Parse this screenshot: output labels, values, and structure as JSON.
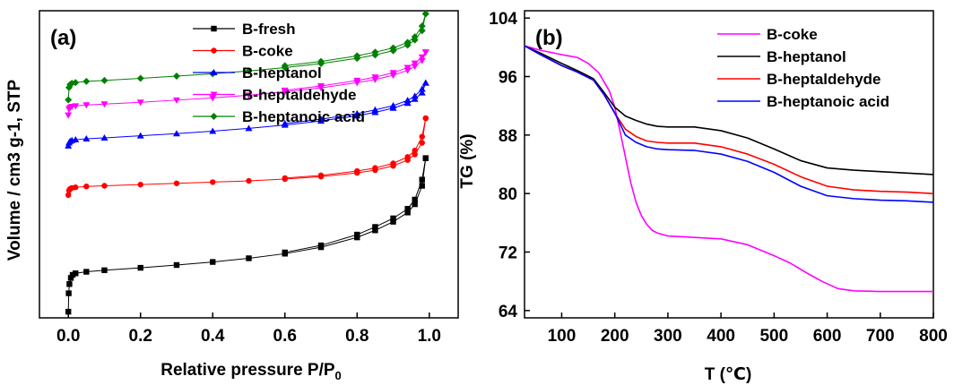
{
  "chart_data": [
    {
      "type": "line",
      "panel_label": "(a)",
      "xlabel": "Relative pressure P/P",
      "xlabel_sub": "0",
      "ylabel": "Volume / cm3 g-1, STP",
      "xlim": [
        -0.08,
        1.08
      ],
      "ylim": [
        0,
        100
      ],
      "x_ticks": [
        0.0,
        0.2,
        0.4,
        0.6,
        0.8,
        1.0
      ],
      "x_tick_labels": [
        "0.0",
        "0.2",
        "0.4",
        "0.6",
        "0.8",
        "1.0"
      ],
      "y_ticks_shown": false,
      "grid": false,
      "legend_position": "top-center",
      "series": [
        {
          "name": "B-fresh",
          "color": "#000000",
          "marker": "square",
          "x": [
            0.0,
            0.001,
            0.003,
            0.007,
            0.012,
            0.02,
            0.05,
            0.1,
            0.2,
            0.3,
            0.4,
            0.5,
            0.6,
            0.7,
            0.8,
            0.85,
            0.9,
            0.94,
            0.96,
            0.98,
            0.99
          ],
          "adsorption": [
            2,
            8,
            11,
            13,
            14,
            14.5,
            15,
            15.5,
            16.3,
            17.2,
            18.2,
            19.4,
            20.9,
            23,
            26.2,
            28.5,
            31.3,
            34.3,
            37,
            43,
            52
          ],
          "desorption": [
            null,
            null,
            null,
            null,
            null,
            null,
            null,
            null,
            null,
            null,
            null,
            null,
            21.3,
            23.6,
            27.1,
            29.6,
            32.4,
            35.5,
            38.5,
            45,
            52
          ]
        },
        {
          "name": "B-coke",
          "color": "#ff0000",
          "marker": "circle",
          "x": [
            0.0,
            0.002,
            0.005,
            0.01,
            0.02,
            0.05,
            0.1,
            0.2,
            0.3,
            0.4,
            0.5,
            0.6,
            0.7,
            0.8,
            0.85,
            0.9,
            0.94,
            0.96,
            0.98,
            0.99
          ],
          "adsorption": [
            40,
            41.5,
            42,
            42.3,
            42.5,
            42.8,
            43,
            43.4,
            43.8,
            44.2,
            44.6,
            45.2,
            46,
            47.2,
            48.1,
            49.5,
            51.4,
            53.2,
            57,
            65
          ],
          "desorption": [
            null,
            null,
            null,
            null,
            null,
            null,
            null,
            null,
            null,
            null,
            null,
            45.5,
            46.4,
            47.8,
            48.8,
            50.3,
            52.4,
            54.5,
            59,
            65
          ]
        },
        {
          "name": "B-heptanol",
          "color": "#0000ff",
          "marker": "triangle-up",
          "x": [
            0.0,
            0.002,
            0.005,
            0.01,
            0.02,
            0.05,
            0.1,
            0.2,
            0.3,
            0.4,
            0.5,
            0.6,
            0.7,
            0.8,
            0.85,
            0.9,
            0.94,
            0.96,
            0.98,
            0.99
          ],
          "adsorption": [
            56,
            57,
            57.5,
            57.8,
            58,
            58.3,
            58.6,
            59.3,
            60,
            60.8,
            61.7,
            62.8,
            64.1,
            65.8,
            66.9,
            68.3,
            69.9,
            71.2,
            73.3,
            76.5
          ],
          "desorption": [
            null,
            null,
            null,
            null,
            null,
            null,
            null,
            null,
            null,
            null,
            null,
            63.3,
            64.7,
            66.5,
            67.7,
            69.1,
            70.8,
            72.2,
            74.5,
            76.5
          ]
        },
        {
          "name": "B-heptaldehyde",
          "color": "#ff00ff",
          "marker": "triangle-down",
          "x": [
            0.0,
            0.002,
            0.005,
            0.01,
            0.02,
            0.05,
            0.1,
            0.2,
            0.3,
            0.4,
            0.5,
            0.6,
            0.7,
            0.8,
            0.85,
            0.9,
            0.94,
            0.96,
            0.98,
            0.99
          ],
          "adsorption": [
            66,
            68,
            68.5,
            68.8,
            69,
            69.3,
            69.6,
            70.2,
            70.9,
            71.6,
            72.5,
            73.6,
            74.9,
            76.6,
            77.6,
            79,
            80.6,
            81.9,
            83.8,
            86.5
          ],
          "desorption": [
            null,
            null,
            null,
            null,
            null,
            null,
            null,
            null,
            null,
            null,
            null,
            74.1,
            75.5,
            77.3,
            78.4,
            79.8,
            81.5,
            82.9,
            84.9,
            86.5
          ]
        },
        {
          "name": "B-heptanoic acid",
          "color": "#008000",
          "marker": "diamond",
          "x": [
            0.0,
            0.002,
            0.005,
            0.01,
            0.02,
            0.05,
            0.1,
            0.2,
            0.3,
            0.4,
            0.5,
            0.6,
            0.7,
            0.8,
            0.85,
            0.9,
            0.94,
            0.96,
            0.98,
            0.99
          ],
          "adsorption": [
            71,
            75,
            76,
            76.4,
            76.6,
            77,
            77.3,
            78,
            78.7,
            79.5,
            80.4,
            81.5,
            82.8,
            84.5,
            85.6,
            87,
            88.8,
            90.5,
            93.5,
            99
          ],
          "desorption": [
            null,
            null,
            null,
            null,
            null,
            null,
            null,
            null,
            null,
            null,
            null,
            82.1,
            83.5,
            85.3,
            86.5,
            87.9,
            89.7,
            91.5,
            95,
            99
          ]
        }
      ]
    },
    {
      "type": "line",
      "panel_label": "(b)",
      "xlabel": "T (℃)",
      "ylabel": "TG (%)",
      "xlim": [
        30,
        800
      ],
      "ylim": [
        63,
        105
      ],
      "x_ticks": [
        100,
        200,
        300,
        400,
        500,
        600,
        700,
        800
      ],
      "x_tick_labels": [
        "100",
        "200",
        "300",
        "400",
        "500",
        "600",
        "700",
        "800"
      ],
      "y_ticks": [
        64,
        72,
        80,
        88,
        96,
        104
      ],
      "y_tick_labels": [
        "64",
        "72",
        "80",
        "88",
        "96",
        "104"
      ],
      "grid": false,
      "legend_position": "top-right",
      "series": [
        {
          "name": "B-coke",
          "color": "#ff00ff",
          "x": [
            30,
            60,
            100,
            130,
            150,
            170,
            190,
            200,
            210,
            220,
            230,
            240,
            250,
            260,
            270,
            280,
            300,
            350,
            400,
            450,
            500,
            530,
            560,
            590,
            620,
            650,
            700,
            750,
            800
          ],
          "y": [
            100.2,
            99.6,
            99,
            98.6,
            97.8,
            96.5,
            94,
            91.8,
            88.5,
            85,
            81.5,
            78.8,
            77,
            75.8,
            75,
            74.6,
            74.2,
            74,
            73.8,
            73,
            71.5,
            70.5,
            69.2,
            68,
            67,
            66.7,
            66.6,
            66.6,
            66.6
          ]
        },
        {
          "name": "B-heptanol",
          "color": "#000000",
          "x": [
            30,
            60,
            100,
            130,
            160,
            180,
            200,
            220,
            240,
            260,
            280,
            300,
            350,
            400,
            450,
            500,
            550,
            600,
            650,
            700,
            750,
            800
          ],
          "y": [
            100.2,
            99.2,
            97.8,
            96.8,
            95.7,
            93.8,
            91.8,
            90.6,
            90,
            89.5,
            89.2,
            89.1,
            89.1,
            88.6,
            87.6,
            86.1,
            84.5,
            83.5,
            83.2,
            83,
            82.8,
            82.6
          ]
        },
        {
          "name": "B-heptaldehyde",
          "color": "#ff0000",
          "x": [
            30,
            60,
            100,
            130,
            160,
            180,
            200,
            220,
            240,
            260,
            280,
            300,
            350,
            400,
            450,
            500,
            550,
            600,
            650,
            700,
            750,
            800
          ],
          "y": [
            100.2,
            99,
            97.5,
            96.6,
            95.5,
            93.5,
            91,
            88.8,
            87.8,
            87.2,
            87,
            86.9,
            86.9,
            86.4,
            85.4,
            84,
            82.3,
            81,
            80.5,
            80.3,
            80.2,
            80
          ]
        },
        {
          "name": "B-heptanoic acid",
          "color": "#0000ff",
          "x": [
            30,
            60,
            100,
            130,
            160,
            180,
            200,
            220,
            240,
            260,
            280,
            300,
            350,
            400,
            450,
            500,
            550,
            600,
            650,
            700,
            750,
            800
          ],
          "y": [
            100.2,
            99,
            97.5,
            96.6,
            95.5,
            93.5,
            91,
            88,
            87,
            86.4,
            86.1,
            86,
            85.9,
            85.4,
            84.4,
            82.9,
            81,
            79.7,
            79.3,
            79.1,
            79,
            78.8
          ]
        }
      ]
    }
  ]
}
